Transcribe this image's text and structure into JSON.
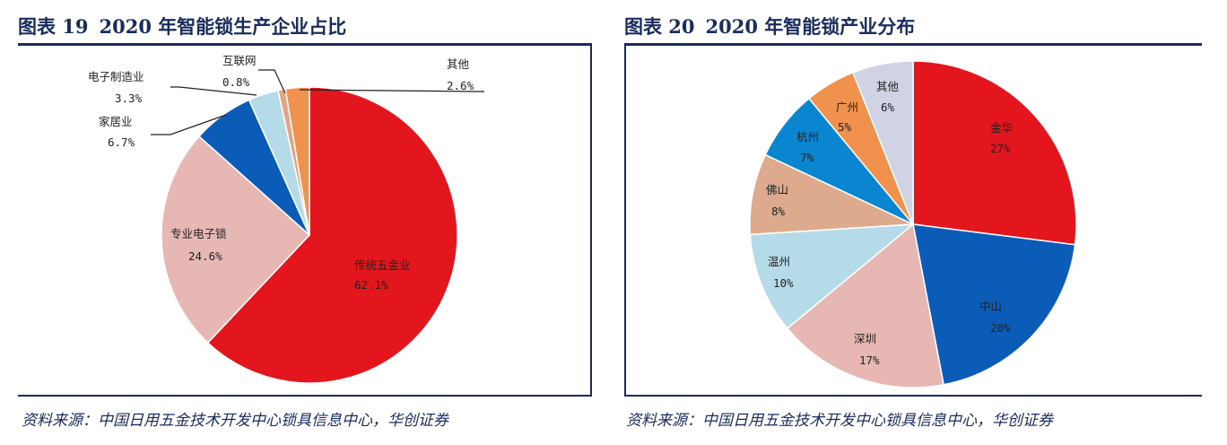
{
  "charts": [
    {
      "fig_label": "图表 19",
      "title": "2020 年智能锁生产企业占比",
      "source": "资料来源：中国日用五金技术开发中心锁具信息中心，华创证券"
    },
    {
      "fig_label": "图表 20",
      "title": "2020 年智能锁产业分布",
      "source": "资料来源：中国日用五金技术开发中心锁具信息中心，华创证券"
    }
  ],
  "chart_data": [
    {
      "type": "pie",
      "title": "2020 年智能锁生产企业占比",
      "categories": [
        "传统五金业",
        "专业电子锁",
        "家居业",
        "电子制造业",
        "互联网",
        "其他"
      ],
      "values": [
        62.1,
        24.6,
        6.7,
        3.3,
        0.8,
        2.6
      ],
      "value_labels": [
        "62.1%",
        "24.6%",
        "6.7%",
        "3.3%",
        "0.8%",
        "2.6%"
      ],
      "colors": [
        "#e3151d",
        "#e7b7b4",
        "#0b5cb7",
        "#b5dbe8",
        "#e4a587",
        "#f0914d"
      ]
    },
    {
      "type": "pie",
      "title": "2020 年智能锁产业分布",
      "categories": [
        "金华",
        "中山",
        "深圳",
        "温州",
        "佛山",
        "杭州",
        "广州",
        "其他"
      ],
      "values": [
        27,
        20,
        17,
        10,
        8,
        7,
        5,
        6
      ],
      "value_labels": [
        "27%",
        "20%",
        "17%",
        "10%",
        "8%",
        "7%",
        "5%",
        "6%"
      ],
      "colors": [
        "#e3151d",
        "#0b5cb7",
        "#e7b7b4",
        "#b5dbe8",
        "#ddaa8d",
        "#0a85cf",
        "#f0914d",
        "#cfd3e4"
      ]
    }
  ]
}
